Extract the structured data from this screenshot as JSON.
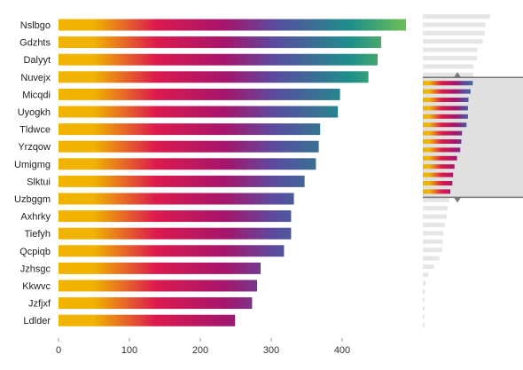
{
  "chart_data": {
    "type": "bar",
    "orientation": "horizontal",
    "categories": [
      "Nslbgo",
      "Gdzhts",
      "Dalyyt",
      "Nuvejx",
      "Micqdi",
      "Uyogkh",
      "Tldwce",
      "Yrzqow",
      "Umigmg",
      "Slktui",
      "Uzbggm",
      "Axhrky",
      "Tiefyh",
      "Qcpiqb",
      "Jzhsgc",
      "Kkwvc",
      "Jzfjxf",
      "Ldlder"
    ],
    "values": [
      490,
      455,
      450,
      437,
      397,
      394,
      369,
      367,
      363,
      347,
      332,
      328,
      328,
      318,
      285,
      280,
      273,
      249
    ],
    "x_ticks": [
      "0",
      "100",
      "200",
      "300",
      "400"
    ],
    "xlim": [
      0,
      500
    ],
    "gradient_colors": [
      "#f0b400",
      "#dc1a4e",
      "#a5156c",
      "#5b4aa0",
      "#1d8f8a",
      "#6cbf55"
    ],
    "title": "",
    "xlabel": "",
    "ylabel": "",
    "overview": {
      "values": [
        490,
        455,
        450,
        437,
        397,
        394,
        369,
        367,
        363,
        347,
        332,
        328,
        328,
        318,
        285,
        280,
        273,
        249,
        230,
        220,
        215,
        200,
        190,
        180,
        175,
        160,
        150,
        145,
        140,
        120,
        80,
        40,
        20,
        15,
        10,
        8,
        5,
        3
      ],
      "brush_range": [
        8,
        22
      ],
      "background_bar_color": "#e6e6e6",
      "brush_fill_color": "#e0e0e0",
      "brush_edge_color": "#777777"
    }
  }
}
